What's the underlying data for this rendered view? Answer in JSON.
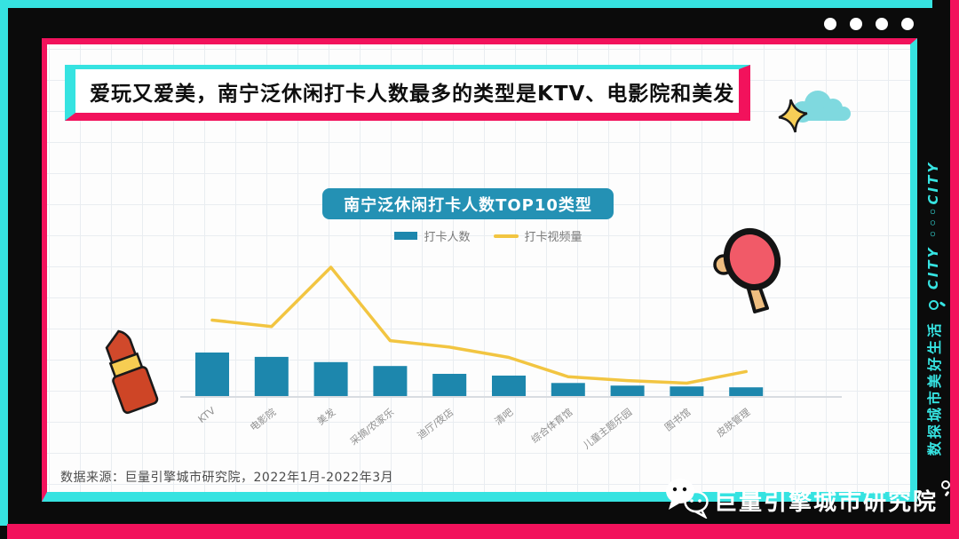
{
  "frame": {
    "dot_count": 4,
    "vertical_strip": {
      "text_cn": "数探城市美好生活",
      "text_en": "CITY ◦◦◦CITY"
    }
  },
  "header": {
    "title": "爱玩又爱美，南宁泛休闲打卡人数最多的类型是KTV、电影院和美发"
  },
  "chart_data": {
    "type": "bar",
    "combo": "bar+line",
    "title": "南宁泛休闲打卡人数TOP10类型",
    "categories": [
      "KTV",
      "电影院",
      "美发",
      "采摘/农家乐",
      "迪厅/夜店",
      "清吧",
      "综合体育馆",
      "儿童主题乐园",
      "图书馆",
      "皮肤管理"
    ],
    "series": [
      {
        "name": "打卡人数",
        "type": "bar",
        "color": "#1D87AD",
        "values": [
          100,
          90,
          78,
          69,
          51,
          47,
          30,
          24,
          22,
          20
        ]
      },
      {
        "name": "打卡视频量",
        "type": "line",
        "color": "#F2C541",
        "values": [
          59,
          54,
          100,
          43,
          38,
          30,
          15,
          12,
          10,
          19
        ]
      }
    ],
    "value_axis": {
      "visible": false,
      "scale": "relative units estimated from bar/line pixel heights, max = 100"
    },
    "legend_position": "top-center",
    "grid": "graph-paper page background",
    "xlabel": "",
    "ylabel": ""
  },
  "footer": {
    "source": "数据来源：巨量引擎城市研究院，2022年1月-2022年3月"
  },
  "branding": {
    "logo_text": "巨量引擎城市研究院"
  },
  "colors": {
    "accent_cyan": "#36E3E1",
    "accent_pink": "#F2125C",
    "frame_black": "#0B0B0B",
    "bar_teal": "#1D87AD",
    "line_yellow": "#F2C541",
    "badge_teal": "#2491B4",
    "grid_line": "#E9EDF1"
  },
  "icons": {
    "logo_icon": "chat-bubbles-icon",
    "logo_trailing_icon": "magnifier-icon",
    "strip_icon": "magnifier-icon",
    "decorations": [
      "lipstick-icon",
      "ping-pong-paddle-icon",
      "cloud-icon",
      "sparkle-icon"
    ]
  }
}
